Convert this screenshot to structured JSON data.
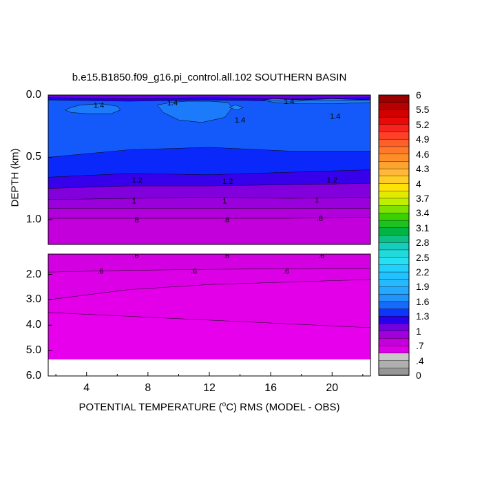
{
  "chart_data": {
    "type": "heatmap",
    "title": "b.e15.B1850.f09_g16.pi_control.all.102 SOUTHERN BASIN",
    "xlabel_pre": "POTENTIAL TEMPERATURE (",
    "xlabel_sup": "o",
    "xlabel_post": "C) RMS (MODEL - OBS)",
    "ylabel": "DEPTH (km)",
    "x_ticks": [
      "4",
      "8",
      "12",
      "16",
      "20"
    ],
    "x_tick_values": [
      4,
      8,
      12,
      16,
      20
    ],
    "xlim": [
      1.5,
      22.5
    ],
    "upper_panel": {
      "ylim": [
        0,
        1.2
      ],
      "y_ticks": [
        "0.0",
        "0.5",
        "1.0"
      ],
      "y_tick_values": [
        0,
        0.5,
        1.0
      ]
    },
    "lower_panel": {
      "ylim": [
        1.2,
        6.0
      ],
      "y_ticks": [
        "2.0",
        "3.0",
        "4.0",
        "5.0",
        "6.0"
      ],
      "y_tick_values": [
        2,
        3,
        4,
        5,
        6
      ],
      "data_bottom": 5.35
    },
    "contour_labels": [
      {
        "text": "1.4",
        "x": 4.8,
        "y": 0.08
      },
      {
        "text": "1.4",
        "x": 9.6,
        "y": 0.06
      },
      {
        "text": "1.4",
        "x": 17.2,
        "y": 0.05
      },
      {
        "text": "1.4",
        "x": 14.0,
        "y": 0.2
      },
      {
        "text": "1.4",
        "x": 20.2,
        "y": 0.17
      },
      {
        "text": "1.2",
        "x": 7.3,
        "y": 0.68
      },
      {
        "text": "1.2",
        "x": 13.2,
        "y": 0.69
      },
      {
        "text": "1.2",
        "x": 20.0,
        "y": 0.68
      },
      {
        "text": "1",
        "x": 7.1,
        "y": 0.85
      },
      {
        "text": "1",
        "x": 13.0,
        "y": 0.85
      },
      {
        "text": "1",
        "x": 19.0,
        "y": 0.84
      },
      {
        "text": ".8",
        "x": 7.2,
        "y": 1.0
      },
      {
        "text": ".8",
        "x": 13.1,
        "y": 1.0
      },
      {
        "text": ".8",
        "x": 19.2,
        "y": 0.99
      },
      {
        "text": ".6",
        "x": 7.2,
        "y": 1.25
      },
      {
        "text": ".6",
        "x": 13.1,
        "y": 1.25
      },
      {
        "text": ".6",
        "x": 19.3,
        "y": 1.25
      },
      {
        "text": ".6",
        "x": 4.9,
        "y": 1.87
      },
      {
        "text": ".6",
        "x": 11.0,
        "y": 1.86
      },
      {
        "text": ".6",
        "x": 17.0,
        "y": 1.86
      }
    ],
    "upper_bands": [
      {
        "top": [
          0,
          0,
          0,
          0,
          0
        ],
        "bot": [
          0.02,
          0.03,
          0.02,
          0.03,
          0.02
        ],
        "value": 1.05
      },
      {
        "top": [
          0.02,
          0.03,
          0.02,
          0.03,
          0.02
        ],
        "bot": [
          0.04,
          0.05,
          0.04,
          0.05,
          0.04
        ],
        "value": 1.2
      },
      {
        "top": [
          0.04,
          0.05,
          0.04,
          0.05,
          0.04
        ],
        "bot": [
          0.5,
          0.44,
          0.42,
          0.45,
          0.45
        ],
        "value": 1.45
      },
      {
        "top": [
          0.5,
          0.44,
          0.42,
          0.45,
          0.45
        ],
        "bot": [
          0.66,
          0.63,
          0.64,
          0.62,
          0.6
        ],
        "value": 1.3
      },
      {
        "top": [
          0.66,
          0.63,
          0.64,
          0.62,
          0.6
        ],
        "bot": [
          0.75,
          0.73,
          0.73,
          0.72,
          0.71
        ],
        "value": 1.15
      },
      {
        "top": [
          0.75,
          0.73,
          0.73,
          0.72,
          0.71
        ],
        "bot": [
          0.84,
          0.83,
          0.82,
          0.83,
          0.82
        ],
        "value": 1.0
      },
      {
        "top": [
          0.84,
          0.83,
          0.82,
          0.83,
          0.82
        ],
        "bot": [
          0.91,
          0.91,
          0.91,
          0.91,
          0.91
        ],
        "value": 0.9
      },
      {
        "top": [
          0.91,
          0.91,
          0.91,
          0.91,
          0.91
        ],
        "bot": [
          0.99,
          0.99,
          0.99,
          0.99,
          0.98
        ],
        "value": 0.8
      },
      {
        "top": [
          0.99,
          0.99,
          0.99,
          0.99,
          0.98
        ],
        "bot": [
          1.2,
          1.2,
          1.2,
          1.2,
          1.2
        ],
        "value": 0.72
      }
    ],
    "upper_patches": [
      {
        "x": [
          2.6,
          3.0,
          3.6,
          5.0,
          6.0,
          6.2,
          5.6,
          4.0,
          3.0
        ],
        "y": [
          0.12,
          0.1,
          0.08,
          0.07,
          0.09,
          0.12,
          0.15,
          0.15,
          0.14
        ],
        "value": 1.55
      },
      {
        "x": [
          8.6,
          9.5,
          10.5,
          12.0,
          13.2,
          13.5,
          13.0,
          11.5,
          10.0,
          9.0
        ],
        "y": [
          0.08,
          0.06,
          0.05,
          0.05,
          0.06,
          0.1,
          0.18,
          0.22,
          0.2,
          0.14
        ],
        "value": 1.55
      },
      {
        "x": [
          15.5,
          16.2,
          18.0,
          20.0,
          22.5,
          22.5,
          20.0,
          18.0,
          16.2
        ],
        "y": [
          0.04,
          0.03,
          0.04,
          0.03,
          0.04,
          0.06,
          0.07,
          0.07,
          0.06
        ],
        "value": 1.55
      },
      {
        "x": [
          13.3,
          13.7,
          14.2,
          13.8
        ],
        "y": [
          0.1,
          0.08,
          0.1,
          0.12
        ],
        "value": 1.6
      }
    ],
    "lower_bands": [
      {
        "top": [
          1.2,
          1.2,
          1.2,
          1.2,
          1.2
        ],
        "bot": [
          1.91,
          1.84,
          1.8,
          1.78,
          1.75
        ],
        "value": 0.62
      },
      {
        "top": [
          1.91,
          1.84,
          1.8,
          1.78,
          1.75
        ],
        "bot": [
          3.0,
          2.6,
          2.4,
          2.3,
          2.2
        ],
        "value": 0.55
      },
      {
        "top": [
          3.0,
          2.6,
          2.4,
          2.3,
          2.2
        ],
        "bot": [
          3.5,
          3.65,
          3.8,
          3.95,
          4.1
        ],
        "value": 0.5
      },
      {
        "top": [
          3.5,
          3.65,
          3.8,
          3.95,
          4.1
        ],
        "bot": [
          5.35,
          5.35,
          5.35,
          5.35,
          5.35
        ],
        "value": 0.47
      }
    ],
    "band_x": [
      1.5,
      6.75,
      12.0,
      17.25,
      22.5
    ],
    "colorbar": {
      "ticks": [
        "6",
        "5.5",
        "5.2",
        "4.9",
        "4.6",
        "4.3",
        "4",
        "3.7",
        "3.4",
        "3.1",
        "2.8",
        "2.5",
        "2.2",
        "1.9",
        "1.6",
        "1.3",
        "1",
        ".7",
        ".4",
        "0"
      ],
      "n_levels": 38
    }
  }
}
